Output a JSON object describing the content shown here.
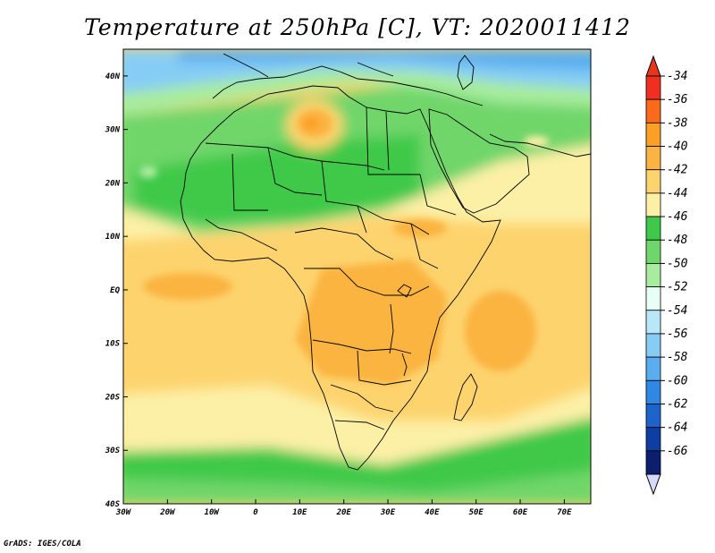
{
  "title": "Temperature at 250hPa [C], VT: 2020011412",
  "credit": "GrADS: IGES/COLA",
  "map": {
    "lon_range": [
      -30,
      76
    ],
    "lat_range": [
      -40,
      45
    ],
    "x_ticks": [
      "30W",
      "20W",
      "10W",
      "0",
      "10E",
      "20E",
      "30E",
      "40E",
      "50E",
      "60E",
      "70E"
    ],
    "x_tick_values": [
      -30,
      -20,
      -10,
      0,
      10,
      20,
      30,
      40,
      50,
      60,
      70
    ],
    "y_ticks": [
      "40S",
      "30S",
      "20S",
      "10S",
      "EQ",
      "10N",
      "20N",
      "30N",
      "40N"
    ],
    "y_tick_values": [
      -40,
      -30,
      -20,
      -10,
      0,
      10,
      20,
      30,
      40
    ]
  },
  "colorbar": {
    "labels": [
      "-34",
      "-36",
      "-38",
      "-40",
      "-42",
      "-44",
      "-46",
      "-48",
      "-50",
      "-52",
      "-54",
      "-56",
      "-58",
      "-60",
      "-62",
      "-64",
      "-66"
    ],
    "colors": [
      "#f02f20",
      "#fa6a1a",
      "#fb9f27",
      "#fbb441",
      "#fdd36e",
      "#fcf0a6",
      "#3fc94a",
      "#6fd66b",
      "#a8ec9e",
      "#e8fff8",
      "#b9e7f7",
      "#86cdf5",
      "#5aaef0",
      "#2f88e4",
      "#1d63cc",
      "#0f3ea3",
      "#0c1e6e"
    ],
    "top_arrow_color": "#e8361d",
    "bottom_arrow_color": "#d9d9fb"
  }
}
